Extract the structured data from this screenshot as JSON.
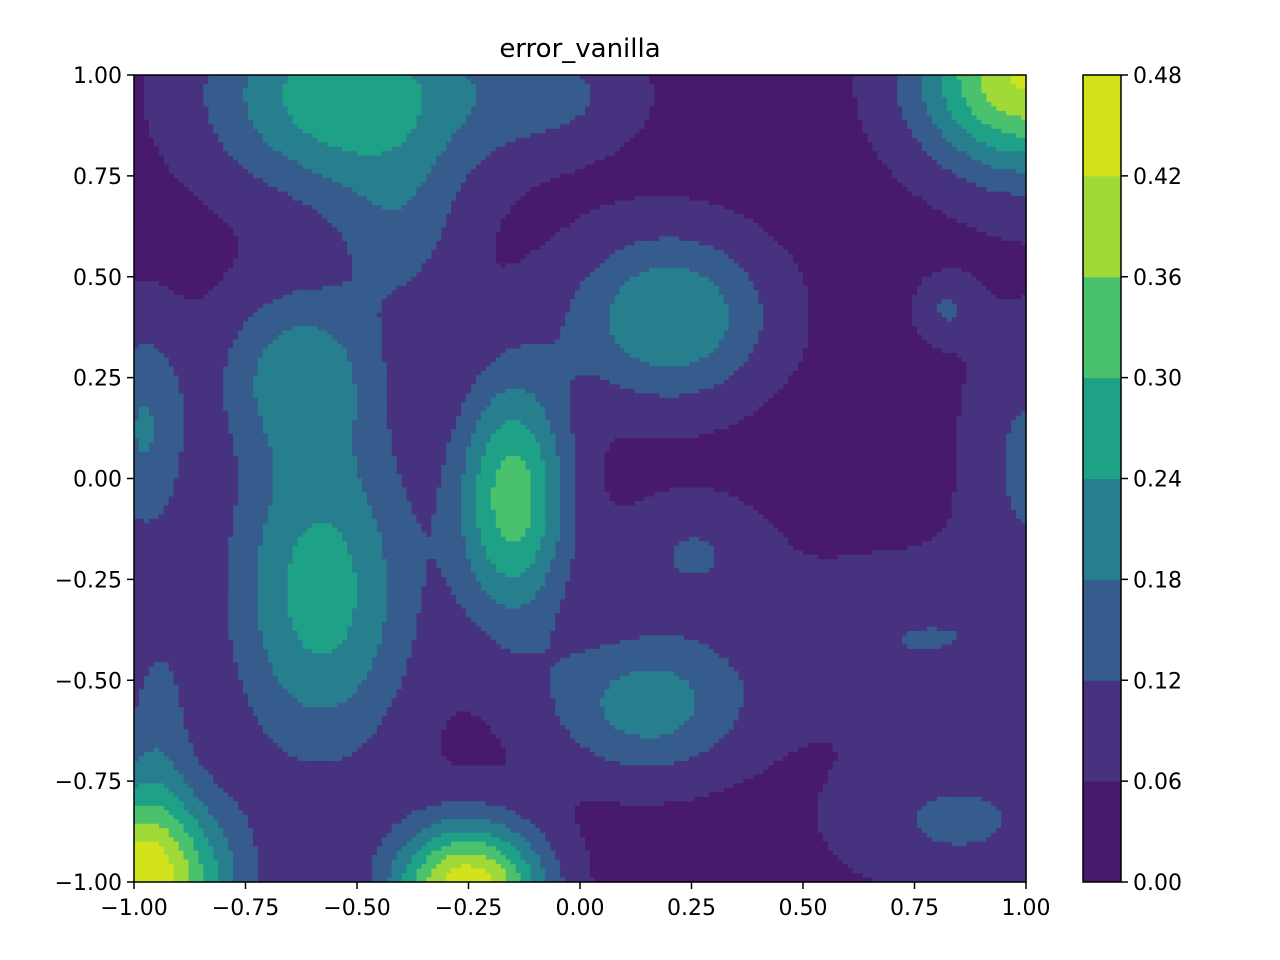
{
  "chart_data": {
    "type": "contour",
    "title": "error_vanilla",
    "xlabel": "",
    "ylabel": "",
    "xlim": [
      -1.0,
      1.0
    ],
    "ylim": [
      -1.0,
      1.0
    ],
    "x_ticks": [
      "−1.00",
      "−0.75",
      "−0.50",
      "−0.25",
      "0.00",
      "0.25",
      "0.50",
      "0.75",
      "1.00"
    ],
    "y_ticks": [
      "−1.00",
      "−0.75",
      "−0.50",
      "−0.25",
      "0.00",
      "0.25",
      "0.50",
      "0.75",
      "1.00"
    ],
    "colorbar": {
      "levels": [
        0.0,
        0.06,
        0.12,
        0.18,
        0.24,
        0.3,
        0.36,
        0.42,
        0.48
      ],
      "tick_labels": [
        "0.00",
        "0.06",
        "0.12",
        "0.18",
        "0.24",
        "0.30",
        "0.36",
        "0.42",
        "0.48"
      ],
      "colors": [
        "#481a6c",
        "#46327e",
        "#365c8d",
        "#277f8e",
        "#1fa187",
        "#4ac16d",
        "#a0da39",
        "#d2e21b"
      ]
    },
    "grid": false,
    "bumps": [
      {
        "x": -0.58,
        "y": -0.28,
        "amp": 0.24,
        "sx": 0.15,
        "sy": 0.3
      },
      {
        "x": -0.63,
        "y": 0.27,
        "amp": 0.16,
        "sx": 0.13,
        "sy": 0.15
      },
      {
        "x": -0.52,
        "y": 0.95,
        "amp": 0.26,
        "sx": 0.22,
        "sy": 0.18
      },
      {
        "x": -0.15,
        "y": -0.05,
        "amp": 0.3,
        "sx": 0.09,
        "sy": 0.22
      },
      {
        "x": 0.2,
        "y": 0.4,
        "amp": 0.21,
        "sx": 0.16,
        "sy": 0.15
      },
      {
        "x": 0.15,
        "y": -0.56,
        "amp": 0.18,
        "sx": 0.16,
        "sy": 0.13
      },
      {
        "x": 1.0,
        "y": 1.0,
        "amp": 0.4,
        "sx": 0.17,
        "sy": 0.17
      },
      {
        "x": -1.0,
        "y": -1.0,
        "amp": 0.45,
        "sx": 0.15,
        "sy": 0.16
      },
      {
        "x": -0.25,
        "y": -1.02,
        "amp": 0.44,
        "sx": 0.12,
        "sy": 0.12
      },
      {
        "x": -0.98,
        "y": 0.12,
        "amp": 0.15,
        "sx": 0.07,
        "sy": 0.2
      },
      {
        "x": 0.75,
        "y": -0.4,
        "amp": 0.09,
        "sx": 0.25,
        "sy": 0.15
      },
      {
        "x": 1.0,
        "y": 0.05,
        "amp": 0.1,
        "sx": 0.1,
        "sy": 0.25
      },
      {
        "x": 0.85,
        "y": -0.85,
        "amp": 0.1,
        "sx": 0.2,
        "sy": 0.12
      },
      {
        "x": 0.82,
        "y": 0.42,
        "amp": 0.09,
        "sx": 0.05,
        "sy": 0.06
      },
      {
        "x": 0.25,
        "y": -0.18,
        "amp": 0.09,
        "sx": 0.12,
        "sy": 0.1
      },
      {
        "x": -0.05,
        "y": 0.95,
        "amp": 0.09,
        "sx": 0.14,
        "sy": 0.1
      },
      {
        "x": -0.95,
        "y": -0.6,
        "amp": 0.1,
        "sx": 0.06,
        "sy": 0.2
      },
      {
        "x": -0.4,
        "y": 0.6,
        "amp": 0.09,
        "sx": 0.1,
        "sy": 0.15
      }
    ]
  }
}
